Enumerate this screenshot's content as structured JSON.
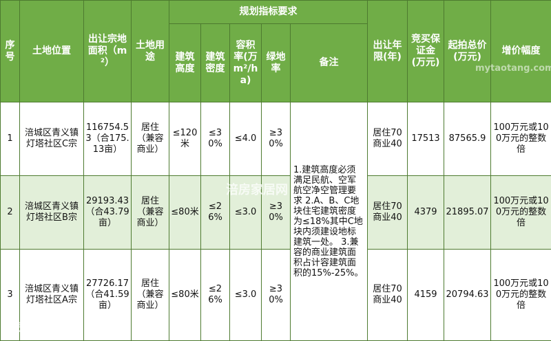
{
  "headers": {
    "seq": "序号",
    "location": "土地位置",
    "area": "出让宗地面积（m²）",
    "use": "土地用途",
    "planning": "规划指标要求",
    "height": "建筑高度",
    "density": "建筑密度",
    "far": "容积率(万m²/ha)",
    "green": "绿地率",
    "remarks": "备注",
    "term": "出让年限(年)",
    "deposit": "竞买保证金(万元)",
    "start_price": "起拍总价(万元)",
    "increment": "增价幅度"
  },
  "rows": [
    {
      "seq": "1",
      "location": "涪城区青义镇灯塔社区C宗",
      "area": "116754.53（合175.13亩）",
      "use": "居住（兼容商业）",
      "height": "≤120米",
      "density": "≤30%",
      "far": "≤4.0",
      "green": "≥30%",
      "term": "居住70商业40",
      "deposit": "17513",
      "start_price": "87565.9",
      "increment": "100万元或100万元的整数倍"
    },
    {
      "seq": "2",
      "location": "涪城区青义镇灯塔社区B宗",
      "area": "29193.43（合43.79亩）",
      "use": "居住（兼容商业）",
      "height": "≤80米",
      "density": "≤26%",
      "far": "≤3.0",
      "green": "≥30%",
      "term": "居住70商业40",
      "deposit": "4379",
      "start_price": "21895.07",
      "increment": "100万元或100万元的整数倍"
    },
    {
      "seq": "3",
      "location": "涪城区青义镇灯塔社区A宗",
      "area": "27726.17（合41.59亩）",
      "use": "居住（兼容商业）",
      "height": "≤80米",
      "density": "≤26%",
      "far": "≤3.0",
      "green": "≥30%",
      "term": "居住70商业40",
      "deposit": "4159",
      "start_price": "20794.63",
      "increment": "100万元或100万元的整数倍"
    }
  ],
  "remarks": "1.建筑高度必须满足民航、空军航空净空管理要求 2.A、B、C地块住宅建筑密度为≤18%其中C地块内须建设地标建筑一处。 3.兼容的商业建筑面积占计容建筑面积的15%-25%。",
  "watermarks": {
    "mid": "涪房家居网",
    "bottom": "涪房家居网",
    "top": "mytaotang.com"
  }
}
